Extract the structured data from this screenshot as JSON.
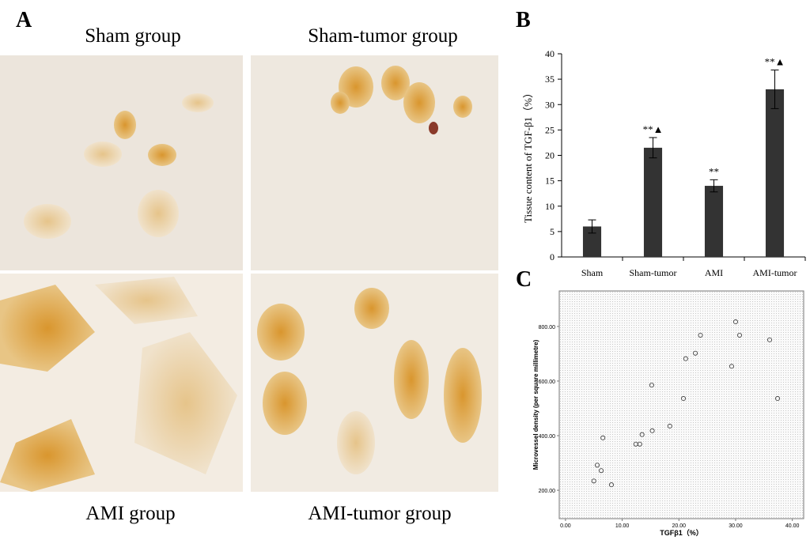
{
  "panels": {
    "A": {
      "label": "A",
      "captions": [
        "Sham group",
        "Sham-tumor group",
        "AMI group",
        "AMI-tumor group"
      ]
    },
    "B": {
      "label": "B"
    },
    "C": {
      "label": "C"
    }
  },
  "chart_data": [
    {
      "type": "bar",
      "ylabel": "Tissue content of TGF-β1（%）",
      "categories": [
        "Sham",
        "Sham-tumor",
        "AMI",
        "AMI-tumor"
      ],
      "values": [
        6,
        21.5,
        14,
        33
      ],
      "errors": [
        1.3,
        2.0,
        1.2,
        3.8
      ],
      "value_annotations": [
        null,
        "**▲",
        "**",
        "**▲"
      ],
      "color": "#333333",
      "ylim": [
        0,
        40
      ],
      "yticks": [
        0,
        5,
        10,
        15,
        20,
        25,
        30,
        35,
        40
      ]
    },
    {
      "type": "scatter",
      "xlabel": "TGFβ1（%）",
      "ylabel": "Microvessel density (per square millimetre)",
      "x": [
        5.0,
        5.6,
        6.3,
        6.6,
        8.1,
        12.4,
        13.1,
        13.5,
        15.3,
        15.2,
        18.4,
        20.8,
        21.2,
        22.9,
        23.8,
        29.3,
        30.0,
        30.7,
        36.0,
        37.4
      ],
      "values": [
        234,
        292,
        272,
        392,
        220,
        369,
        369,
        404,
        418,
        585,
        435,
        536,
        682,
        702,
        768,
        654,
        817,
        768,
        751,
        536
      ],
      "color": "#333333",
      "xlim": [
        -1.1,
        42
      ],
      "ylim": [
        96,
        930
      ],
      "xticks": [
        {
          "value": 0,
          "label": "0.00"
        },
        {
          "value": 10,
          "label": "10.00"
        },
        {
          "value": 20,
          "label": "20.00"
        },
        {
          "value": 30,
          "label": "30.00"
        },
        {
          "value": 40,
          "label": "40.00"
        }
      ],
      "yticks": [
        {
          "value": 200,
          "label": "200.00"
        },
        {
          "value": 400,
          "label": "400.00"
        },
        {
          "value": 600,
          "label": "600.00"
        },
        {
          "value": 800,
          "label": "800.00"
        }
      ]
    }
  ]
}
